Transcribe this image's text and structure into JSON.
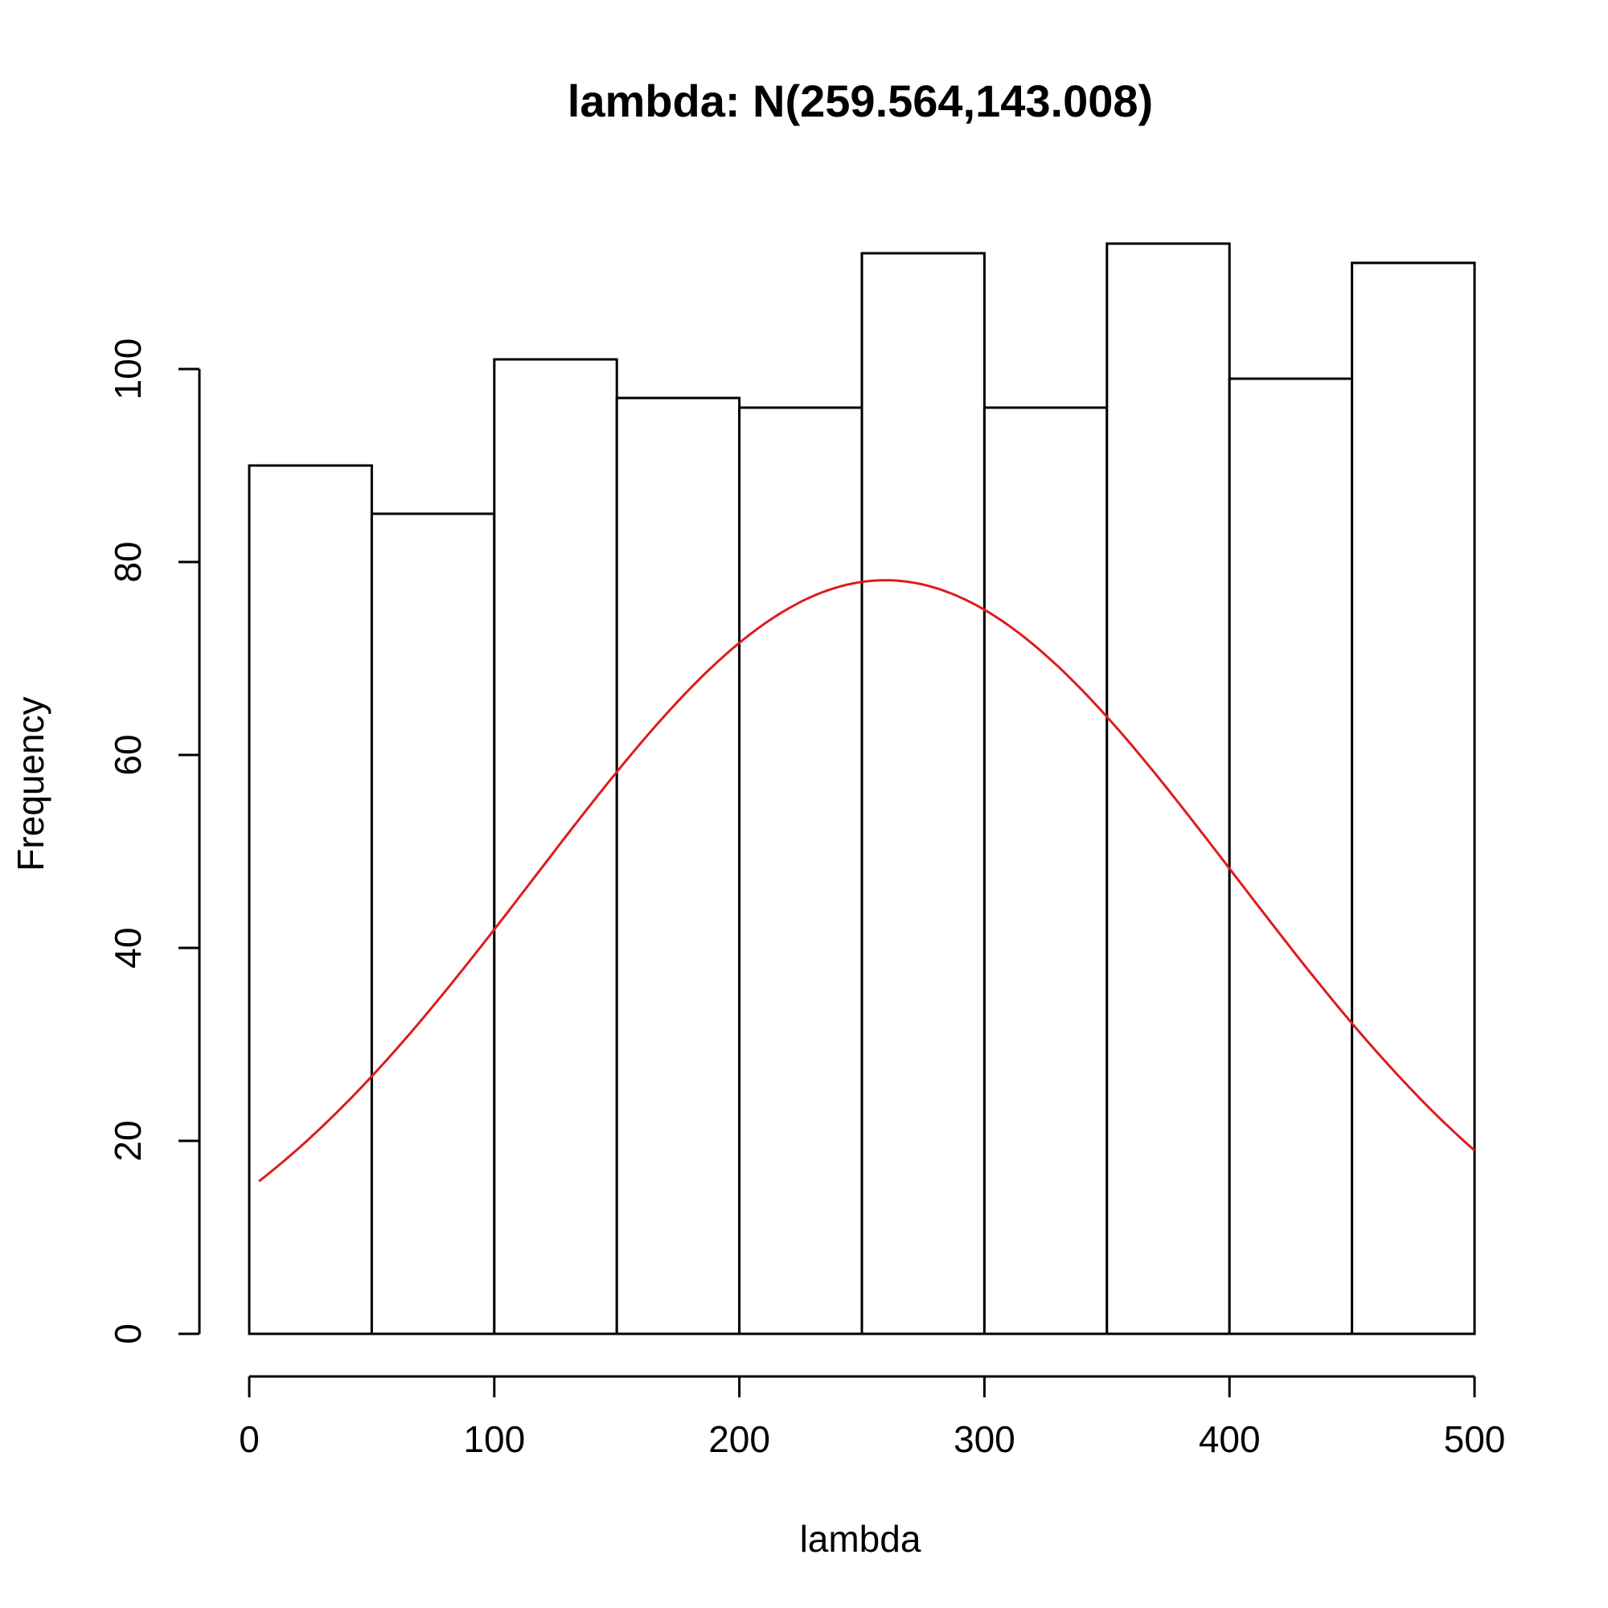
{
  "chart_data": {
    "type": "bar",
    "title": "lambda: N(259.564,143.008)",
    "xlabel": "lambda",
    "ylabel": "Frequency",
    "bin_edges": [
      0,
      50,
      100,
      150,
      200,
      250,
      300,
      350,
      400,
      450,
      500
    ],
    "values": [
      90,
      85,
      101,
      97,
      96,
      112,
      96,
      113,
      99,
      111
    ],
    "xlim": [
      0,
      500
    ],
    "ylim": [
      0,
      118
    ],
    "x_ticks": [
      0,
      100,
      200,
      300,
      400,
      500
    ],
    "y_ticks": [
      0,
      20,
      40,
      60,
      80,
      100
    ],
    "grid": false,
    "normal_curve": {
      "mean": 259.564,
      "sd": 143.008,
      "x_range": [
        4,
        500
      ],
      "scale": 28000,
      "color": "#dd1c1c"
    }
  }
}
